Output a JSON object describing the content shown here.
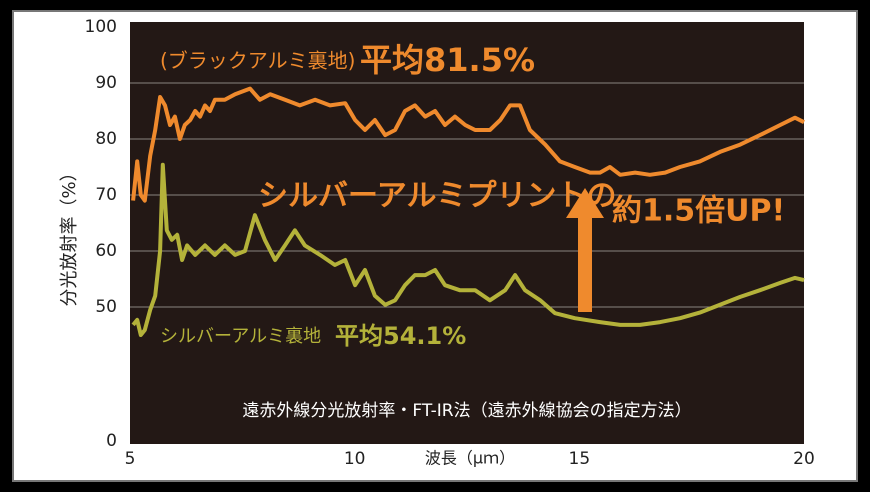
{
  "chart_data": {
    "type": "line",
    "ylabel": "分光放射率（%）",
    "xlabel": "波長（μｍ）",
    "method_note": "遠赤外線分光放射率・FT-IR法（遠赤外線協会の指定方法）",
    "xlim": [
      5,
      20
    ],
    "xticks": [
      5,
      10,
      15,
      20
    ],
    "ylim": [
      0,
      100
    ],
    "axis_break": [
      0,
      40
    ],
    "yticks": [
      0,
      50,
      60,
      70,
      80,
      90,
      100
    ],
    "grid": true,
    "background": "#231815",
    "series": [
      {
        "name": "(ブラックアルミ裏地)",
        "average_label": "平均81.5%",
        "color": "#ef8a2d",
        "x": [
          5.07,
          5.16,
          5.24,
          5.33,
          5.45,
          5.56,
          5.67,
          5.78,
          5.89,
          6.0,
          6.11,
          6.22,
          6.34,
          6.45,
          6.56,
          6.67,
          6.78,
          6.89,
          7.11,
          7.34,
          7.67,
          7.89,
          8.12,
          8.45,
          8.78,
          9.12,
          9.45,
          9.79,
          10.01,
          10.23,
          10.45,
          10.68,
          10.9,
          11.12,
          11.34,
          11.57,
          11.79,
          12.01,
          12.23,
          12.46,
          12.68,
          13.01,
          13.24,
          13.46,
          13.68,
          13.9,
          14.24,
          14.57,
          14.9,
          15.24,
          15.46,
          15.68,
          15.91,
          16.24,
          16.57,
          16.91,
          17.24,
          17.68,
          18.13,
          18.58,
          19.02,
          19.47,
          19.8,
          20.0
        ],
        "values": [
          69,
          76,
          70,
          69,
          77,
          81.6,
          87.5,
          86,
          82.5,
          84,
          80,
          82.5,
          83.4,
          85,
          84,
          86,
          85,
          87,
          87,
          88,
          89,
          87,
          88,
          87,
          86,
          87,
          86,
          86.4,
          83.4,
          81.6,
          83.4,
          80.7,
          81.6,
          85,
          86,
          84,
          85,
          82.5,
          84,
          82.5,
          81.6,
          81.6,
          83.4,
          86,
          86,
          81.6,
          79,
          76,
          75,
          74,
          74,
          75,
          73.6,
          74,
          73.6,
          74,
          75,
          76,
          77.7,
          79,
          80.7,
          82.5,
          83.8,
          83
        ]
      },
      {
        "name": "シルバーアルミ裏地",
        "average_label": "平均54.1%",
        "color": "#b4b23a",
        "x": [
          5.07,
          5.16,
          5.24,
          5.33,
          5.45,
          5.56,
          5.67,
          5.73,
          5.82,
          5.93,
          6.05,
          6.16,
          6.27,
          6.45,
          6.67,
          6.89,
          7.11,
          7.34,
          7.56,
          7.78,
          8.0,
          8.23,
          8.45,
          8.67,
          8.89,
          9.23,
          9.56,
          9.79,
          10.01,
          10.23,
          10.45,
          10.68,
          10.9,
          11.12,
          11.34,
          11.57,
          11.79,
          12.01,
          12.34,
          12.68,
          13.01,
          13.35,
          13.57,
          13.79,
          14.13,
          14.46,
          14.9,
          15.46,
          15.91,
          16.35,
          16.8,
          17.24,
          17.68,
          18.13,
          18.58,
          19.02,
          19.47,
          19.8,
          20.0
        ],
        "values": [
          46.8,
          47.7,
          45,
          45.9,
          49.5,
          52,
          60,
          75.4,
          63.7,
          62,
          62.9,
          58.4,
          61,
          59.3,
          61,
          59.3,
          61,
          59.3,
          60,
          66.4,
          62,
          58.4,
          61,
          63.7,
          61,
          59.3,
          57.5,
          58.4,
          53.9,
          56.6,
          52,
          50.4,
          51.2,
          53.9,
          55.7,
          55.7,
          56.6,
          53.9,
          53,
          53,
          51.2,
          53,
          55.7,
          53,
          51.2,
          48.9,
          48,
          47.3,
          46.8,
          46.8,
          47.3,
          48,
          49,
          50.4,
          51.8,
          53,
          54.3,
          55.2,
          54.8
        ]
      }
    ],
    "annotations": [
      {
        "text": "シルバーアルミプリントの",
        "color": "#ef8a2d"
      },
      {
        "text": "約1.5倍UP!",
        "color": "#ef8a2d"
      }
    ]
  }
}
